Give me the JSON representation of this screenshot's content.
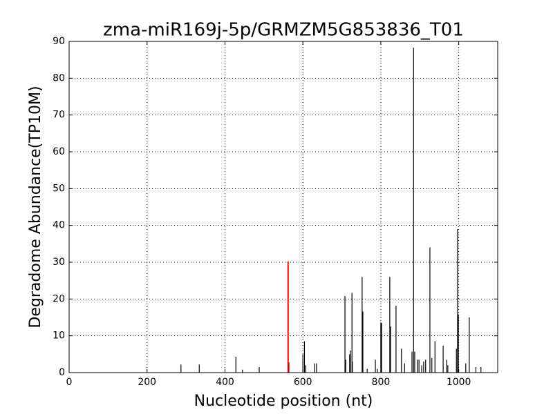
{
  "chart_data": {
    "type": "bar",
    "title": "zma-miR169j-5p/GRMZM5G853836_T01",
    "xlabel": "Nucleotide position (nt)",
    "ylabel": "Degradome Abundance(TP10M)",
    "xlim": [
      0,
      1100
    ],
    "xticks": [
      0,
      200,
      400,
      600,
      800,
      1000
    ],
    "ylim": [
      0,
      90
    ],
    "yticks": [
      0,
      10,
      20,
      30,
      40,
      50,
      60,
      70,
      80,
      90
    ],
    "grid": true,
    "series": [
      {
        "color": "#000000",
        "x": [
          287,
          334,
          428,
          445,
          488,
          564,
          600,
          604,
          607,
          630,
          635,
          708,
          710,
          720,
          722,
          726,
          727,
          752,
          754,
          765,
          786,
          791,
          800,
          802,
          823,
          825,
          839,
          853,
          861,
          880,
          884,
          887,
          894,
          898,
          905,
          910,
          915,
          926,
          931,
          939,
          960,
          969,
          972,
          994,
          997,
          999,
          1018,
          1027,
          1044,
          1057
        ],
        "values": [
          2.2,
          2.2,
          4.3,
          0.8,
          1.5,
          2.8,
          5,
          8.5,
          2,
          2.5,
          2.5,
          20.8,
          3.5,
          5,
          6,
          21.7,
          3,
          26,
          16.6,
          1,
          3.5,
          1,
          13.6,
          13.5,
          26,
          12.5,
          18.2,
          6.5,
          2.5,
          5.7,
          88.3,
          5.7,
          3.5,
          3.5,
          2,
          3,
          3.5,
          34,
          4,
          8.5,
          7.3,
          3.5,
          2,
          6.5,
          39,
          15.8,
          2.5,
          15,
          1.5,
          1.5
        ]
      },
      {
        "color": "#ff0000",
        "x": [
          562
        ],
        "values": [
          30.2
        ]
      }
    ]
  }
}
